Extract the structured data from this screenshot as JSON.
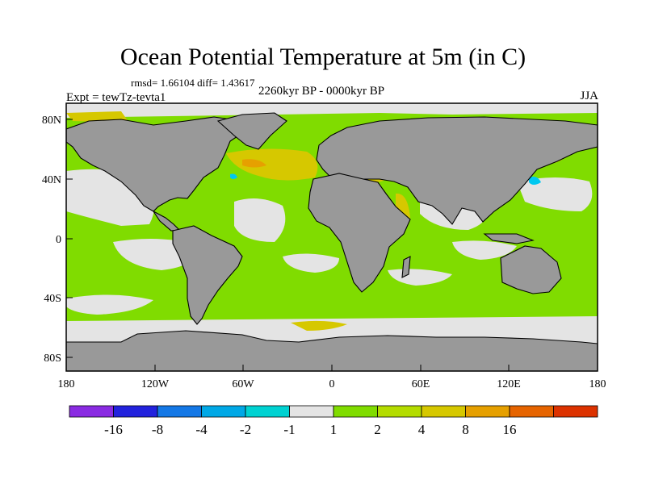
{
  "title": "Ocean Potential Temperature at 5m (in C)",
  "stats": "rmsd= 1.66104 diff= 1.43617",
  "period": "2260kyr BP - 0000kyr BP",
  "experiment": "Expt = tewTz-tevta1",
  "season": "JJA",
  "colors": {
    "ocean_base": "#80dc00",
    "land": "#999999",
    "near_zero": "#e4e4e4",
    "warm": "#d6c800",
    "orange": "#e6a000",
    "cyan": "#00c8f0",
    "coast": "#000000"
  },
  "map": {
    "lat_ticks": [
      "80N",
      "40N",
      "0",
      "40S",
      "80S"
    ],
    "lon_ticks": [
      "180",
      "120W",
      "60W",
      "0",
      "60E",
      "120E",
      "180"
    ]
  },
  "colorbar": {
    "colors": [
      "#8a2be2",
      "#2222dd",
      "#1478e6",
      "#00a8e6",
      "#00d2d2",
      "#e4e4e4",
      "#80dc00",
      "#b4dc00",
      "#d6c800",
      "#e6a000",
      "#e66400",
      "#dc3200"
    ],
    "labels": [
      "-16",
      "-8",
      "-4",
      "-2",
      "-1",
      "1",
      "2",
      "4",
      "8",
      "16"
    ]
  }
}
